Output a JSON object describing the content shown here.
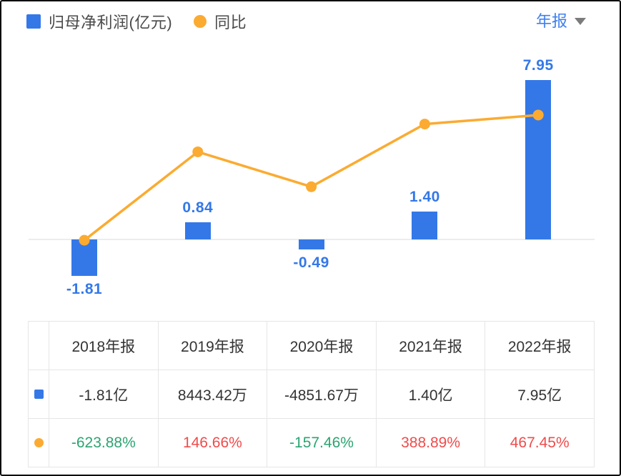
{
  "colors": {
    "bar_blue": "#3478e8",
    "line_orange": "#fbab31",
    "text_dark": "#4a4a4a",
    "table_text": "#333333",
    "green": "#2ba471",
    "red": "#f04b4b",
    "period_blue": "#4080ee",
    "grid_gray": "#ececec"
  },
  "legend": {
    "items": [
      {
        "label": "归母净利润(亿元)",
        "shape": "square",
        "color": "#3478e8"
      },
      {
        "label": "同比",
        "shape": "circle",
        "color": "#fbab31"
      }
    ]
  },
  "period_selector": {
    "label": "年报"
  },
  "chart_data": {
    "type": "bar+line",
    "categories": [
      "2018年报",
      "2019年报",
      "2020年报",
      "2021年报",
      "2022年报"
    ],
    "series": [
      {
        "name": "归母净利润(亿元)",
        "type": "bar",
        "values": [
          -1.81,
          0.84,
          -0.49,
          1.4,
          7.95
        ],
        "labels": [
          "-1.81",
          "0.84",
          "-0.49",
          "1.40",
          "7.95"
        ],
        "unit": "亿元",
        "color": "#3478e8"
      },
      {
        "name": "同比",
        "type": "line",
        "values": [
          -623.88,
          146.66,
          -157.46,
          388.89,
          467.45
        ],
        "unit": "%",
        "color": "#fbab31"
      }
    ],
    "legend_position": "top-left",
    "grid": false,
    "zero_line": true
  },
  "table": {
    "columns": [
      "2018年报",
      "2019年报",
      "2020年报",
      "2021年报",
      "2022年报"
    ],
    "rows": [
      {
        "series": "归母净利润",
        "icon": "bar-series-icon",
        "values": [
          "-1.81亿",
          "8443.42万",
          "-4851.67万",
          "1.40亿",
          "7.95亿"
        ],
        "value_colors": [
          "#333333",
          "#333333",
          "#333333",
          "#333333",
          "#333333"
        ]
      },
      {
        "series": "同比",
        "icon": "line-series-icon",
        "values": [
          "-623.88%",
          "146.66%",
          "-157.46%",
          "388.89%",
          "467.45%"
        ],
        "value_colors": [
          "#2ba471",
          "#f04b4b",
          "#2ba471",
          "#f04b4b",
          "#f04b4b"
        ]
      }
    ]
  }
}
